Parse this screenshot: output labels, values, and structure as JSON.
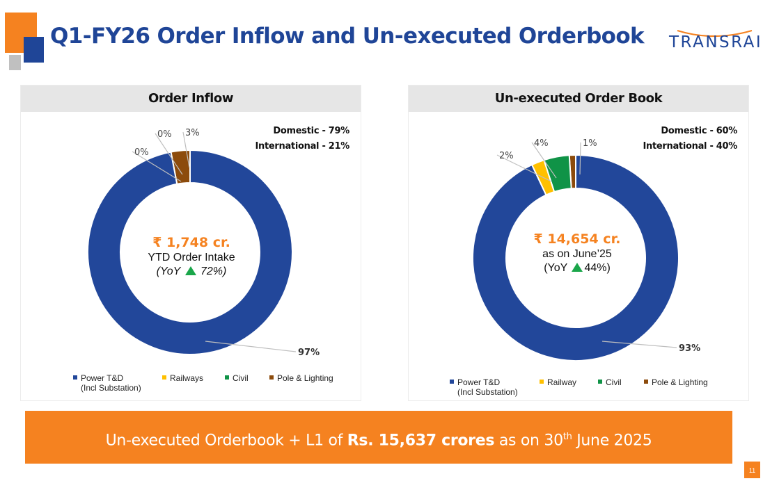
{
  "header": {
    "title": "Q1-FY26 Order Inflow and Un-executed Orderbook",
    "logo_text": "TRANSRAIL"
  },
  "colors": {
    "power_td": "#22479a",
    "railways": "#ffc000",
    "civil": "#109347",
    "pole_lighting": "#8c4b0c",
    "accent_orange": "#f58220",
    "title_blue": "#1f4597",
    "up_arrow": "#1aa64a"
  },
  "left_panel": {
    "title": "Order Inflow",
    "domestic_label": "Domestic -",
    "domestic_value": "79%",
    "international_label": "International -",
    "international_value": "21%",
    "center_amount": "₹ 1,748 cr.",
    "center_caption": "YTD Order Intake",
    "yoy_prefix": "(YoY",
    "yoy_value": "72%)",
    "legend": [
      "Power T&D",
      "(Incl Substation)",
      "Railways",
      "Civil",
      "Pole & Lighting"
    ]
  },
  "right_panel": {
    "title": "Un-executed Order Book",
    "domestic_label": "Domestic -",
    "domestic_value": "60%",
    "international_label": "International -",
    "international_value": "40%",
    "center_amount": "₹ 14,654 cr.",
    "center_caption": "as on June’25",
    "yoy_prefix": "(YoY",
    "yoy_value": "44%)",
    "legend": [
      "Power T&D",
      "(Incl Substation)",
      "Railway",
      "Civil",
      "Pole & Lighting"
    ]
  },
  "banner": {
    "prefix": "Un-executed Orderbook + L1 of ",
    "bold": "Rs. 15,637  crores",
    "middle": " as on 30",
    "superscript": "th",
    "suffix": " June 2025"
  },
  "page_number": "11",
  "chart_data": [
    {
      "type": "pie",
      "title": "Order Inflow",
      "categories": [
        "Power T&D (Incl Substation)",
        "Railways",
        "Civil",
        "Pole & Lighting"
      ],
      "values": [
        97,
        0,
        0,
        3
      ],
      "labels": [
        "97%",
        "0%",
        "0%",
        "3%"
      ],
      "donut": true,
      "legend": "bottom"
    },
    {
      "type": "pie",
      "title": "Un-executed Order Book",
      "categories": [
        "Power T&D (Incl Substation)",
        "Railway",
        "Civil",
        "Pole & Lighting"
      ],
      "values": [
        93,
        2,
        4,
        1
      ],
      "labels": [
        "93%",
        "2%",
        "4%",
        "1%"
      ],
      "donut": true,
      "legend": "bottom"
    }
  ]
}
